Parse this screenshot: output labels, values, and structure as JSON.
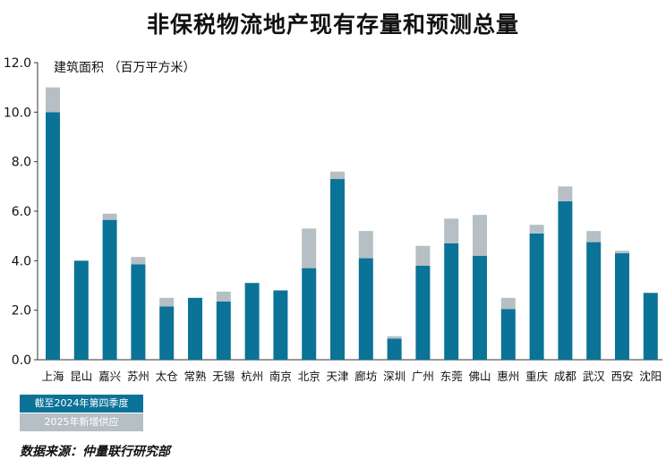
{
  "chart_data": {
    "type": "bar",
    "stacked": true,
    "title": "非保税物流地产现有存量和预测总量",
    "ylabel": "建筑面积 （百万平方米）",
    "ylim": [
      0,
      12
    ],
    "yticks": [
      "0.0",
      "2.0",
      "4.0",
      "6.0",
      "8.0",
      "10.0",
      "12.0"
    ],
    "categories": [
      "上海",
      "昆山",
      "嘉兴",
      "苏州",
      "太仓",
      "常熟",
      "无锡",
      "杭州",
      "南京",
      "北京",
      "天津",
      "廊坊",
      "深圳",
      "广州",
      "东莞",
      "佛山",
      "惠州",
      "重庆",
      "成都",
      "武汉",
      "西安",
      "沈阳"
    ],
    "series": [
      {
        "name": "截至2024年第四季度",
        "color": "#0b7397",
        "values": [
          10.0,
          4.0,
          5.65,
          3.85,
          2.15,
          2.5,
          2.35,
          3.1,
          2.8,
          3.7,
          7.3,
          4.1,
          0.85,
          3.8,
          4.7,
          4.2,
          2.05,
          5.1,
          6.4,
          4.75,
          4.3,
          2.7
        ]
      },
      {
        "name": "2025年新增供应",
        "color": "#b5bfc4",
        "values": [
          1.0,
          0.0,
          0.25,
          0.3,
          0.35,
          0.0,
          0.4,
          0.0,
          0.0,
          1.6,
          0.3,
          1.1,
          0.1,
          0.8,
          1.0,
          1.65,
          0.45,
          0.35,
          0.6,
          0.45,
          0.1,
          0.0
        ]
      }
    ],
    "grid": false,
    "legend": "bottom-left"
  },
  "source": "数据来源：仲量联行研究部"
}
